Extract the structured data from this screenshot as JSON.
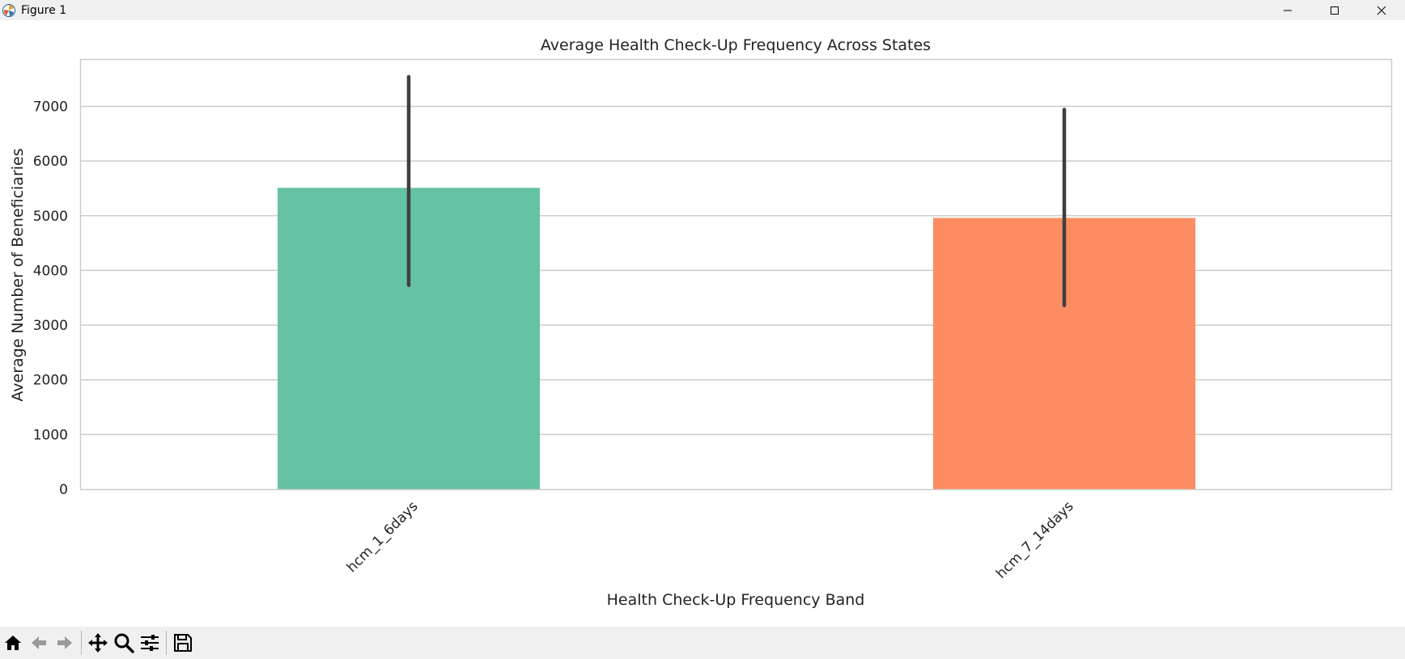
{
  "window": {
    "title": "Figure 1",
    "icons": [
      "matplotlib-logo-icon",
      "minimize-icon",
      "maximize-icon",
      "close-icon"
    ]
  },
  "toolbar": {
    "buttons": [
      "home-icon",
      "back-arrow-icon",
      "forward-arrow-icon",
      "pan-icon",
      "zoom-icon",
      "configure-subplots-icon",
      "save-icon"
    ]
  },
  "chart_data": {
    "type": "bar",
    "title": "Average Health Check-Up Frequency Across States",
    "xlabel": "Health Check-Up Frequency Band",
    "ylabel": "Average Number of Beneficiaries",
    "categories": [
      "hcm_1_6days",
      "hcm_7_14days"
    ],
    "values": [
      5510,
      4960
    ],
    "error_low": [
      3730,
      3360
    ],
    "error_high": [
      7540,
      6940
    ],
    "colors": [
      "#66c2a5",
      "#fc8d62"
    ],
    "ylim": [
      0,
      7850
    ],
    "yticks": [
      0,
      1000,
      2000,
      3000,
      4000,
      5000,
      6000,
      7000
    ],
    "grid": "horizontal"
  }
}
